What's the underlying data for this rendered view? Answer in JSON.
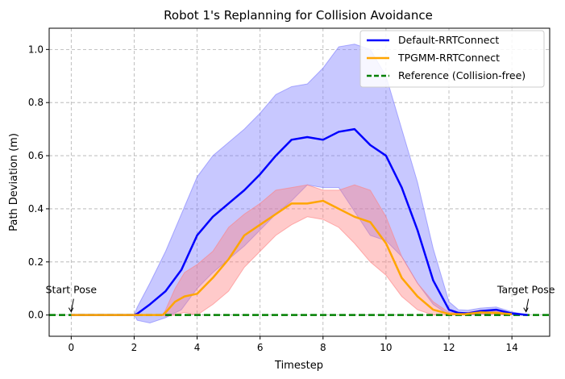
{
  "chart_data": {
    "type": "line",
    "title": "Robot 1's Replanning for Collision Avoidance",
    "xlabel": "Timestep",
    "ylabel": "Path Deviation (m)",
    "xlim": [
      -0.7,
      15.2
    ],
    "ylim": [
      -0.08,
      1.08
    ],
    "xticks": [
      0,
      2,
      4,
      6,
      8,
      10,
      12,
      14
    ],
    "yticks": [
      0.0,
      0.2,
      0.4,
      0.6,
      0.8,
      1.0
    ],
    "grid": true,
    "legend_position": "top-right",
    "series": [
      {
        "name": "Default-RRTConnect",
        "color": "#0000ff",
        "band_color": "#7b7bff",
        "x": [
          0,
          2.0,
          2.1,
          2.5,
          3.0,
          3.5,
          4.0,
          4.5,
          5.0,
          5.5,
          6.0,
          6.5,
          7.0,
          7.5,
          8.0,
          8.5,
          9.0,
          9.5,
          10.0,
          10.5,
          11.0,
          11.5,
          12.0,
          12.3,
          12.6,
          13.0,
          13.5,
          14.0,
          14.5
        ],
        "y": [
          0,
          0,
          0.005,
          0.04,
          0.09,
          0.17,
          0.3,
          0.37,
          0.42,
          0.47,
          0.53,
          0.6,
          0.66,
          0.67,
          0.66,
          0.69,
          0.7,
          0.64,
          0.6,
          0.48,
          0.32,
          0.13,
          0.02,
          0.008,
          0.006,
          0.015,
          0.02,
          0.006,
          0.0
        ],
        "upper": [
          0,
          0,
          0.03,
          0.12,
          0.24,
          0.38,
          0.52,
          0.6,
          0.65,
          0.7,
          0.76,
          0.83,
          0.86,
          0.87,
          0.93,
          1.01,
          1.02,
          1.0,
          0.9,
          0.7,
          0.5,
          0.25,
          0.05,
          0.02,
          0.018,
          0.026,
          0.03,
          0.012,
          0.0
        ],
        "lower": [
          0,
          0,
          -0.02,
          -0.03,
          -0.01,
          0.02,
          0.1,
          0.16,
          0.21,
          0.26,
          0.32,
          0.38,
          0.43,
          0.49,
          0.48,
          0.48,
          0.39,
          0.3,
          0.28,
          0.22,
          0.12,
          0.04,
          0.0,
          0.0,
          0.0,
          0.002,
          0.008,
          0.0,
          0.0
        ]
      },
      {
        "name": "TPGMM-RRTConnect",
        "color": "#ffa500",
        "band_color": "#ff8080",
        "x": [
          0,
          2.9,
          3.0,
          3.3,
          3.6,
          4.0,
          4.5,
          5.0,
          5.5,
          6.0,
          6.5,
          7.0,
          7.5,
          8.0,
          8.5,
          9.0,
          9.5,
          10.0,
          10.5,
          11.0,
          11.5,
          12.0,
          12.5,
          13.0,
          13.5,
          14.0
        ],
        "y": [
          0,
          0,
          0.01,
          0.05,
          0.07,
          0.08,
          0.14,
          0.21,
          0.3,
          0.34,
          0.38,
          0.42,
          0.42,
          0.43,
          0.4,
          0.37,
          0.35,
          0.27,
          0.14,
          0.07,
          0.02,
          0.004,
          0.003,
          0.01,
          0.008,
          0.003
        ],
        "upper": [
          0,
          0,
          0.02,
          0.1,
          0.16,
          0.19,
          0.24,
          0.33,
          0.38,
          0.42,
          0.47,
          0.48,
          0.49,
          0.47,
          0.47,
          0.49,
          0.47,
          0.37,
          0.22,
          0.12,
          0.05,
          0.01,
          0.008,
          0.018,
          0.015,
          0.005
        ],
        "lower": [
          0,
          0,
          -0.005,
          0.0,
          0.01,
          0.0,
          0.04,
          0.09,
          0.18,
          0.24,
          0.3,
          0.34,
          0.37,
          0.36,
          0.33,
          0.27,
          0.2,
          0.15,
          0.07,
          0.02,
          0.0,
          0.0,
          0.0,
          0.003,
          0.002,
          0.0
        ]
      },
      {
        "name": "Reference (Collision-free)",
        "color": "#008000",
        "style": "dashed",
        "x": [
          -0.7,
          15.2
        ],
        "y": [
          0,
          0
        ]
      }
    ],
    "annotations": [
      {
        "text": "Start Pose",
        "x": 0.0,
        "y": 0.0
      },
      {
        "text": "Target Pose",
        "x": 14.45,
        "y": 0.0
      }
    ]
  }
}
